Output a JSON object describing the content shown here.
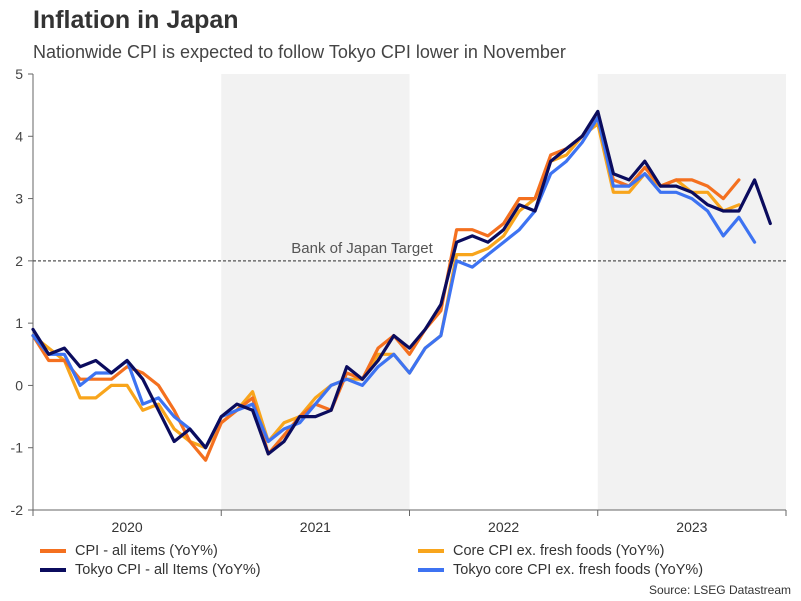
{
  "header": {
    "title": "Inflation in Japan",
    "subtitle": "Nationwide CPI is expected to follow Tokyo CPI lower in November"
  },
  "source": "Source: LSEG Datastream",
  "colors": {
    "cpi": "#f4701f",
    "core_cpi": "#f8a51c",
    "tokyo_cpi": "#0b0c5e",
    "tokyo_core_cpi": "#3d73f2",
    "shade": "#f2f2f2",
    "target_line": "#555555"
  },
  "chart_data": {
    "type": "line",
    "title": "Inflation in Japan",
    "xlabel": "",
    "ylabel": "",
    "ylim": [
      -2,
      5
    ],
    "yticks": [
      -2,
      -1,
      0,
      1,
      2,
      3,
      4,
      5
    ],
    "years": [
      "2020",
      "2021",
      "2022",
      "2023"
    ],
    "x_start": "2020-01",
    "x_end": "2023-12",
    "shaded_years": [
      "2021",
      "2023"
    ],
    "reference_line": {
      "value": 2,
      "label": "Bank of Japan Target"
    },
    "series": [
      {
        "name": "CPI - all items (YoY%)",
        "color_key": "cpi",
        "values": [
          0.8,
          0.4,
          0.4,
          0.1,
          0.1,
          0.1,
          0.3,
          0.2,
          0.0,
          -0.4,
          -0.9,
          -1.2,
          -0.6,
          -0.4,
          -0.2,
          -1.1,
          -0.8,
          -0.5,
          -0.3,
          -0.4,
          0.2,
          0.1,
          0.6,
          0.8,
          0.5,
          0.9,
          1.2,
          2.5,
          2.5,
          2.4,
          2.6,
          3.0,
          3.0,
          3.7,
          3.8,
          4.0,
          4.3,
          3.3,
          3.2,
          3.5,
          3.2,
          3.3,
          3.3,
          3.2,
          3.0,
          3.3
        ]
      },
      {
        "name": "Core CPI ex. fresh foods (YoY%)",
        "color_key": "core_cpi",
        "values": [
          0.8,
          0.6,
          0.4,
          -0.2,
          -0.2,
          0.0,
          0.0,
          -0.4,
          -0.3,
          -0.7,
          -0.9,
          -1.0,
          -0.6,
          -0.4,
          -0.1,
          -0.9,
          -0.6,
          -0.5,
          -0.2,
          0.0,
          0.1,
          0.1,
          0.5,
          0.5,
          0.2,
          0.6,
          0.8,
          2.1,
          2.1,
          2.2,
          2.4,
          2.8,
          3.0,
          3.6,
          3.7,
          4.0,
          4.2,
          3.1,
          3.1,
          3.4,
          3.2,
          3.3,
          3.1,
          3.1,
          2.8,
          2.9
        ]
      },
      {
        "name": "Tokyo CPI - all Items (YoY%)",
        "color_key": "tokyo_cpi",
        "values": [
          0.9,
          0.5,
          0.6,
          0.3,
          0.4,
          0.2,
          0.4,
          0.1,
          -0.4,
          -0.9,
          -0.7,
          -1.0,
          -0.5,
          -0.3,
          -0.4,
          -1.1,
          -0.9,
          -0.5,
          -0.5,
          -0.4,
          0.3,
          0.1,
          0.4,
          0.8,
          0.6,
          0.9,
          1.3,
          2.3,
          2.4,
          2.3,
          2.5,
          2.9,
          2.8,
          3.6,
          3.8,
          4.0,
          4.4,
          3.4,
          3.3,
          3.6,
          3.2,
          3.2,
          3.1,
          2.9,
          2.8,
          2.8,
          3.3,
          2.6
        ]
      },
      {
        "name": "Tokyo core CPI ex. fresh foods (YoY%)",
        "color_key": "tokyo_core_cpi",
        "values": [
          0.8,
          0.5,
          0.5,
          0.0,
          0.2,
          0.2,
          0.4,
          -0.3,
          -0.2,
          -0.5,
          -0.7,
          -1.0,
          -0.5,
          -0.4,
          -0.3,
          -0.9,
          -0.7,
          -0.6,
          -0.3,
          0.0,
          0.1,
          0.0,
          0.3,
          0.5,
          0.2,
          0.6,
          0.8,
          2.0,
          1.9,
          2.1,
          2.3,
          2.5,
          2.8,
          3.4,
          3.6,
          3.9,
          4.3,
          3.2,
          3.2,
          3.4,
          3.1,
          3.1,
          3.0,
          2.8,
          2.4,
          2.7,
          2.3
        ]
      }
    ]
  }
}
